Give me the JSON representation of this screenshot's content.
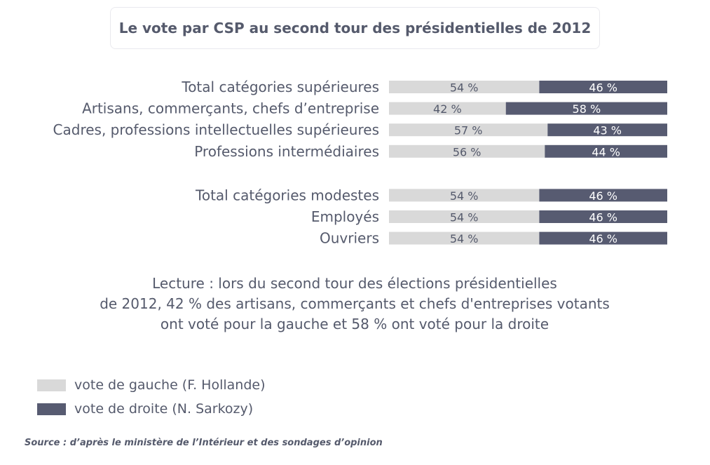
{
  "chart_data": {
    "type": "bar",
    "orientation": "horizontal",
    "stacked": true,
    "title": "Le vote par CSP au second tour des présidentielles de 2012",
    "categories": [
      "Total catégories supérieures",
      "Artisans, commerçants, chefs d’entreprise",
      "Cadres, professions intellectuelles supérieures",
      "Professions intermédiaires",
      "Total catégories modestes",
      "Employés",
      "Ouvriers"
    ],
    "groups": [
      [
        0,
        1,
        2,
        3
      ],
      [
        4,
        5,
        6
      ]
    ],
    "series": [
      {
        "name": "vote de gauche (F. Hollande)",
        "values": [
          54,
          42,
          57,
          56,
          54,
          54,
          54
        ]
      },
      {
        "name": "vote de droite (N. Sarkozy)",
        "values": [
          46,
          58,
          43,
          44,
          46,
          46,
          46
        ]
      }
    ],
    "value_suffix": " %",
    "xlim": [
      0,
      100
    ],
    "legend_position": "bottom-left"
  },
  "colors": {
    "gauche": "#d9d9d9",
    "droite": "#575b71",
    "text": "#555a6c",
    "label_on_light": "#555a6c",
    "label_on_dark": "#ffffff"
  },
  "lecture": {
    "line1": "Lecture : lors du second tour des élections présidentielles",
    "line2": "de 2012, 42 % des artisans, commerçants et chefs d'entreprises votants",
    "line3": "ont voté pour la gauche et 58 % ont voté pour la droite"
  },
  "legend": {
    "gauche": "vote de gauche (F. Hollande)",
    "droite": "vote de droite (N. Sarkozy)"
  },
  "source": "Source : d’après le ministère de l’Intérieur et des sondages d’opinion"
}
